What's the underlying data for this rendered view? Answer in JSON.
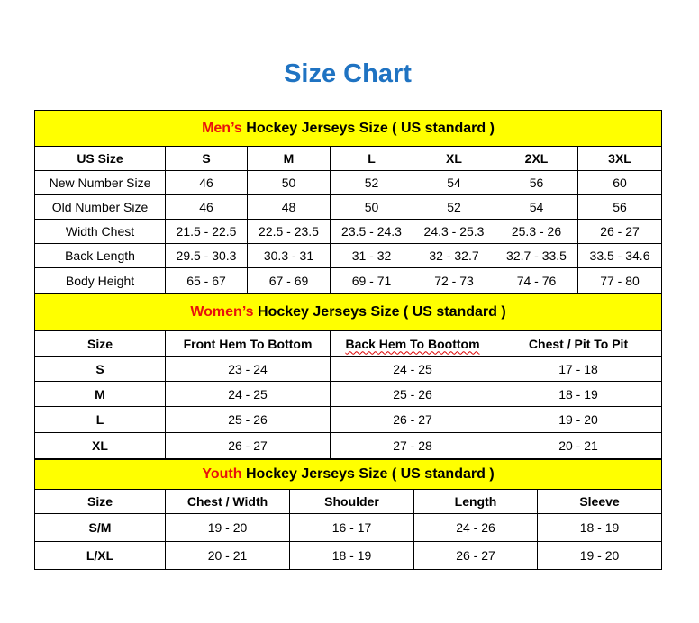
{
  "title": "Size Chart",
  "colors": {
    "title": "#1f73c2",
    "header_bg": "#ffff00",
    "accent_red": "#e8120c"
  },
  "men": {
    "title_prefix": "Men’s",
    "title_rest": " Hockey Jerseys Size ( US standard )",
    "columns": [
      "US Size",
      "S",
      "M",
      "L",
      "XL",
      "2XL",
      "3XL"
    ],
    "rows": [
      [
        "New Number Size",
        "46",
        "50",
        "52",
        "54",
        "56",
        "60"
      ],
      [
        "Old Number Size",
        "46",
        "48",
        "50",
        "52",
        "54",
        "56"
      ],
      [
        "Width Chest",
        "21.5 - 22.5",
        "22.5 - 23.5",
        "23.5 - 24.3",
        "24.3 - 25.3",
        "25.3 - 26",
        "26 - 27"
      ],
      [
        "Back Length",
        "29.5 - 30.3",
        "30.3 - 31",
        "31 - 32",
        "32 - 32.7",
        "32.7 - 33.5",
        "33.5 - 34.6"
      ],
      [
        "Body Height",
        "65 - 67",
        "67 - 69",
        "69 - 71",
        "72 - 73",
        "74 - 76",
        "77 - 80"
      ]
    ]
  },
  "women": {
    "title_prefix": "Women’s",
    "title_rest": " Hockey Jerseys Size ( US standard )",
    "columns": [
      "Size",
      "Front Hem To Bottom",
      "Back Hem To Boottom",
      "Chest / Pit To Pit"
    ],
    "rows": [
      [
        "S",
        "23 - 24",
        "24 - 25",
        "17 - 18"
      ],
      [
        "M",
        "24 - 25",
        "25 - 26",
        "18 - 19"
      ],
      [
        "L",
        "25 - 26",
        "26 - 27",
        "19 - 20"
      ],
      [
        "XL",
        "26 - 27",
        "27 - 28",
        "20 - 21"
      ]
    ]
  },
  "youth": {
    "title_prefix": "Youth",
    "title_rest": " Hockey Jerseys Size ( US standard )",
    "columns": [
      "Size",
      "Chest / Width",
      "Shoulder",
      "Length",
      "Sleeve"
    ],
    "rows": [
      [
        "S/M",
        "19 - 20",
        "16 - 17",
        "24 - 26",
        "18 - 19"
      ],
      [
        "L/XL",
        "20 - 21",
        "18 - 19",
        "26 - 27",
        "19 - 20"
      ]
    ]
  }
}
